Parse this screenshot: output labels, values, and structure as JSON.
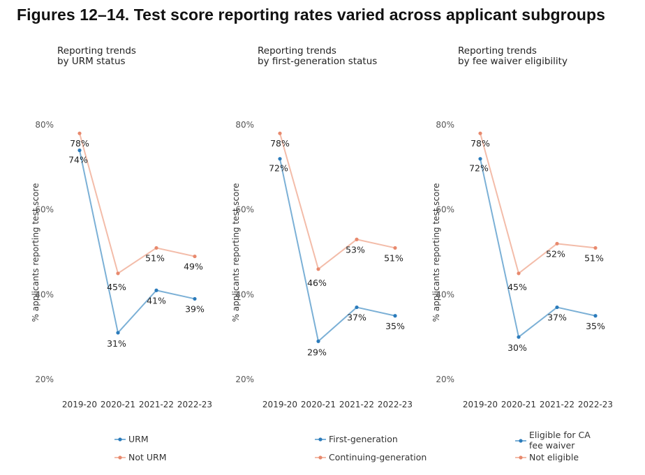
{
  "figure_title": "Figures 12–14. Test score reporting rates varied across applicant subgroups",
  "colors": {
    "blue": "#7bb0d6",
    "blue_dot": "#2b7bbb",
    "orange": "#f3bca9",
    "orange_dot": "#e8896d"
  },
  "chart_data": [
    {
      "type": "line",
      "title_lines": [
        "Reporting trends",
        "by URM status"
      ],
      "categories": [
        "2019-20",
        "2020-21",
        "2021-22",
        "2022-23"
      ],
      "ylabel": "% applicants reporting test score",
      "yticks": [
        "80%",
        "60%",
        "40%",
        "20%"
      ],
      "ytick_values": [
        80,
        60,
        40,
        20
      ],
      "ylim": [
        20,
        80
      ],
      "grid": false,
      "series": [
        {
          "name": "URM",
          "color": "blue",
          "values": [
            74,
            31,
            41,
            39
          ],
          "labels": [
            "74%",
            "31%",
            "41%",
            "39%"
          ]
        },
        {
          "name": "Not URM",
          "color": "orange",
          "values": [
            78,
            45,
            51,
            49
          ],
          "labels": [
            "78%",
            "45%",
            "51%",
            "49%"
          ]
        }
      ],
      "legend": [
        {
          "label_lines": [
            "URM"
          ],
          "color": "blue"
        },
        {
          "label_lines": [
            "Not URM"
          ],
          "color": "orange"
        }
      ]
    },
    {
      "type": "line",
      "title_lines": [
        "Reporting trends",
        "by first-generation status"
      ],
      "categories": [
        "2019-20",
        "2020-21",
        "2021-22",
        "2022-23"
      ],
      "ylabel": "% applicants reporting test score",
      "yticks": [
        "80%",
        "60%",
        "40%",
        "20%"
      ],
      "ytick_values": [
        80,
        60,
        40,
        20
      ],
      "ylim": [
        20,
        80
      ],
      "grid": false,
      "series": [
        {
          "name": "First-generation",
          "color": "blue",
          "values": [
            72,
            29,
            37,
            35
          ],
          "labels": [
            "72%",
            "29%",
            "37%",
            "35%"
          ]
        },
        {
          "name": "Continuing-generation",
          "color": "orange",
          "values": [
            78,
            46,
            53,
            51
          ],
          "labels": [
            "78%",
            "46%",
            "53%",
            "51%"
          ]
        }
      ],
      "legend": [
        {
          "label_lines": [
            "First-generation"
          ],
          "color": "blue"
        },
        {
          "label_lines": [
            "Continuing-generation"
          ],
          "color": "orange"
        }
      ]
    },
    {
      "type": "line",
      "title_lines": [
        "Reporting trends",
        "by fee waiver eligibility"
      ],
      "categories": [
        "2019-20",
        "2020-21",
        "2021-22",
        "2022-23"
      ],
      "ylabel": "% applicants reporting test score",
      "yticks": [
        "80%",
        "60%",
        "40%",
        "20%"
      ],
      "ytick_values": [
        80,
        60,
        40,
        20
      ],
      "ylim": [
        20,
        80
      ],
      "grid": false,
      "series": [
        {
          "name": "Eligible for CA fee waiver",
          "color": "blue",
          "values": [
            72,
            30,
            37,
            35
          ],
          "labels": [
            "72%",
            "30%",
            "37%",
            "35%"
          ]
        },
        {
          "name": "Not eligible",
          "color": "orange",
          "values": [
            78,
            45,
            52,
            51
          ],
          "labels": [
            "78%",
            "45%",
            "52%",
            "51%"
          ]
        }
      ],
      "legend": [
        {
          "label_lines": [
            "Eligible for CA",
            "fee waiver"
          ],
          "color": "blue"
        },
        {
          "label_lines": [
            "Not eligible"
          ],
          "color": "orange"
        }
      ]
    }
  ]
}
